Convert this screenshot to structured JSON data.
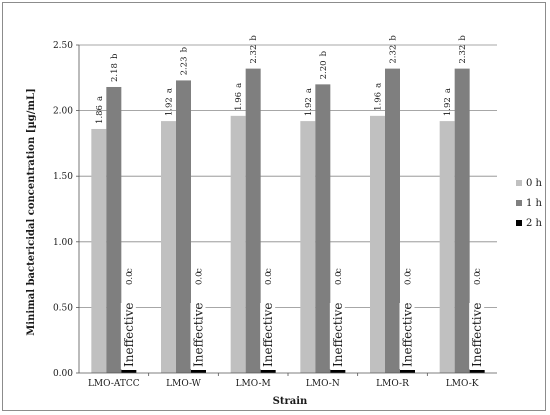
{
  "chart_data": {
    "type": "bar",
    "title": "",
    "xlabel": "Strain",
    "ylabel": "Minimal bactericidal concentration [µg/mL]",
    "ylim": [
      0,
      2.5
    ],
    "yticks": [
      "0.00",
      "0.50",
      "1.00",
      "1.50",
      "2.00",
      "2.50"
    ],
    "grid": true,
    "legend_position": "right",
    "categories": [
      "LMO-ATCC",
      "LMO-W",
      "LMO-M",
      "LMO-N",
      "LMO-R",
      "LMO-K"
    ],
    "series": [
      {
        "name": "0 h",
        "color": "#c0c0c0",
        "values": [
          1.86,
          1.92,
          1.96,
          1.92,
          1.96,
          1.92
        ],
        "labels": [
          "1.86",
          "1.92",
          "1.96",
          "1.92",
          "1.96",
          "1.92"
        ],
        "letters": [
          "a",
          "a",
          "a",
          "a",
          "a",
          "a"
        ]
      },
      {
        "name": "1 h",
        "color": "#7f7f7f",
        "values": [
          2.18,
          2.23,
          2.32,
          2.2,
          2.32,
          2.32
        ],
        "labels": [
          "2.18",
          "2.23",
          "2.32",
          "2.20",
          "2.32",
          "2.32"
        ],
        "letters": [
          "b",
          "b",
          "b",
          "b",
          "b",
          "b"
        ]
      },
      {
        "name": "2 h",
        "color": "#000000",
        "values": [
          0.0,
          0.0,
          0.0,
          0.0,
          0.0,
          0.0
        ],
        "labels": [
          "0.0",
          "0.0",
          "0.0",
          "0.0",
          "0.0",
          "0.0"
        ],
        "letters": [
          "c",
          "c",
          "c",
          "c",
          "c",
          "c"
        ],
        "annotation": "Ineffective"
      }
    ]
  }
}
